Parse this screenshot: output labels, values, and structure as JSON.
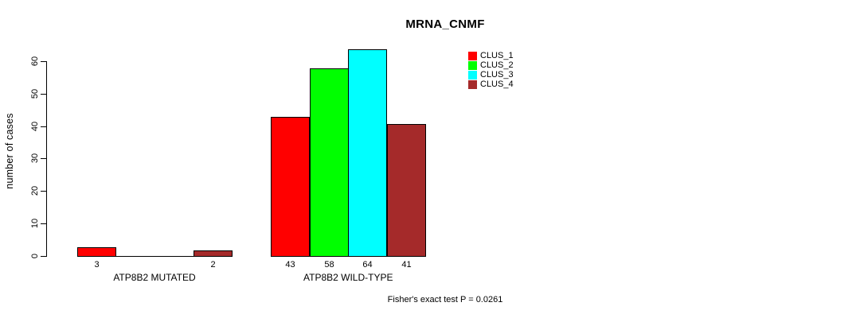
{
  "chart_data": {
    "type": "bar",
    "title": "MRNA_CNMF",
    "xlabel": "",
    "ylabel": "number of cases",
    "categories": [
      "ATP8B2 MUTATED",
      "ATP8B2 WILD-TYPE"
    ],
    "series": [
      {
        "name": "CLUS_1",
        "color": "#FF0000",
        "values": [
          3,
          43
        ]
      },
      {
        "name": "CLUS_2",
        "color": "#00FF00",
        "values": [
          0,
          58
        ]
      },
      {
        "name": "CLUS_3",
        "color": "#00FFFF",
        "values": [
          0,
          64
        ]
      },
      {
        "name": "CLUS_4",
        "color": "#A52A2A",
        "values": [
          2,
          41
        ]
      }
    ],
    "yticks": [
      0,
      10,
      20,
      30,
      40,
      50,
      60
    ],
    "ylim": [
      0,
      64
    ],
    "grid": false,
    "bar_value_labels_shown": true,
    "legend_position": "right-of-plot",
    "annotation": "Fisher's exact test P = 0.0261"
  }
}
